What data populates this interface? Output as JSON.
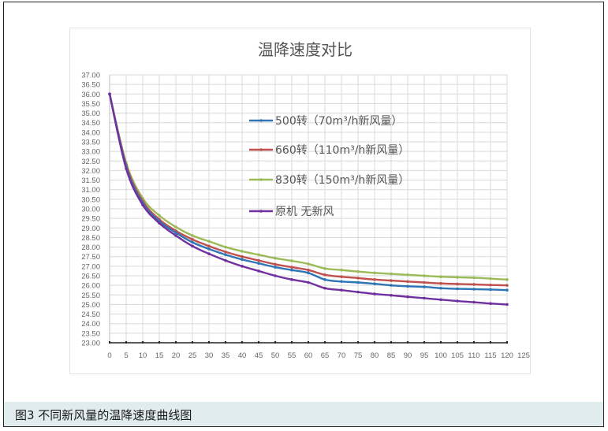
{
  "caption": "图3 不同新风量的温降速度曲线图",
  "chart_data": {
    "type": "line",
    "title": "温降速度对比",
    "xlabel": "",
    "ylabel": "",
    "xlim": [
      0,
      125
    ],
    "ylim": [
      23.0,
      37.0
    ],
    "x_ticks": [
      "0",
      "5",
      "10",
      "15",
      "20",
      "25",
      "30",
      "35",
      "40",
      "45",
      "50",
      "55",
      "60",
      "65",
      "70",
      "75",
      "80",
      "85",
      "90",
      "95",
      "100",
      "105",
      "110",
      "115",
      "120",
      "125"
    ],
    "y_ticks": [
      "37.00",
      "36.50",
      "36.00",
      "35.50",
      "35.00",
      "34.50",
      "34.00",
      "33.50",
      "33.00",
      "32.50",
      "32.00",
      "31.50",
      "31.00",
      "30.50",
      "30.00",
      "29.50",
      "29.00",
      "28.50",
      "28.00",
      "27.50",
      "27.00",
      "26.50",
      "26.00",
      "25.50",
      "25.00",
      "24.50",
      "24.00",
      "23.50",
      "23.00"
    ],
    "grid": true,
    "legend_position": "upper-center-inside",
    "x": [
      0,
      5,
      10,
      15,
      20,
      25,
      30,
      35,
      40,
      45,
      50,
      55,
      60,
      65,
      70,
      75,
      80,
      85,
      90,
      95,
      100,
      105,
      110,
      115,
      120
    ],
    "series": [
      {
        "name": "500转（70m³/h新风量）",
        "color": "#2e75b6",
        "values": [
          36.0,
          32.2,
          30.3,
          29.35,
          28.75,
          28.25,
          27.9,
          27.6,
          27.35,
          27.15,
          26.95,
          26.8,
          26.65,
          26.3,
          26.2,
          26.15,
          26.08,
          26.0,
          25.95,
          25.92,
          25.85,
          25.82,
          25.8,
          25.78,
          25.75
        ]
      },
      {
        "name": "660转（110m³/h新风量）",
        "color": "#c0504d",
        "values": [
          36.0,
          32.3,
          30.4,
          29.45,
          28.85,
          28.4,
          28.05,
          27.75,
          27.5,
          27.3,
          27.1,
          26.95,
          26.8,
          26.55,
          26.45,
          26.38,
          26.3,
          26.25,
          26.2,
          26.15,
          26.1,
          26.07,
          26.05,
          26.02,
          26.0
        ]
      },
      {
        "name": "830转（150m³/h新风量）",
        "color": "#9bbb59",
        "values": [
          36.0,
          32.4,
          30.55,
          29.65,
          29.05,
          28.6,
          28.3,
          28.0,
          27.78,
          27.6,
          27.42,
          27.28,
          27.12,
          26.88,
          26.8,
          26.72,
          26.65,
          26.6,
          26.55,
          26.5,
          26.45,
          26.42,
          26.4,
          26.35,
          26.3
        ]
      },
      {
        "name": "原机 无新风",
        "color": "#7030a0",
        "values": [
          36.0,
          32.1,
          30.2,
          29.25,
          28.6,
          28.05,
          27.65,
          27.3,
          27.0,
          26.75,
          26.5,
          26.3,
          26.15,
          25.85,
          25.75,
          25.65,
          25.55,
          25.48,
          25.4,
          25.33,
          25.25,
          25.18,
          25.12,
          25.05,
          25.0
        ]
      }
    ]
  }
}
